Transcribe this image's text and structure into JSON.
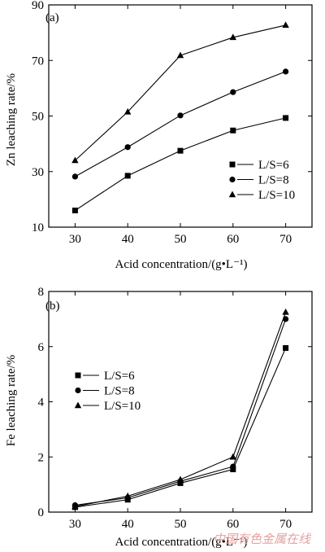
{
  "chart_data": [
    {
      "type": "line",
      "panel_label": "(a)",
      "xlabel": "Acid concentration/(g•L⁻¹)",
      "ylabel": "Zn leaching rate/%",
      "x": [
        30,
        40,
        50,
        60,
        70
      ],
      "xlim": [
        25,
        75
      ],
      "ylim": [
        10,
        90
      ],
      "xticks": [
        30,
        40,
        50,
        60,
        70
      ],
      "yticks": [
        10,
        30,
        50,
        70,
        90
      ],
      "legend_position": "lower-right",
      "series": [
        {
          "name": "L/S=6",
          "marker": "square",
          "values": [
            16.0,
            28.5,
            37.5,
            44.8,
            49.3
          ]
        },
        {
          "name": "L/S=8",
          "marker": "circle",
          "values": [
            28.2,
            38.8,
            50.2,
            58.6,
            66.0
          ]
        },
        {
          "name": "L/S=10",
          "marker": "triangle",
          "values": [
            34.0,
            51.5,
            71.8,
            78.3,
            82.7
          ]
        }
      ]
    },
    {
      "type": "line",
      "panel_label": "(b)",
      "xlabel": "Acid concentration/(g•L⁻¹)",
      "ylabel": "Fe leaching rate/%",
      "x": [
        30,
        40,
        50,
        60,
        70
      ],
      "xlim": [
        25,
        75
      ],
      "ylim": [
        0,
        8
      ],
      "xticks": [
        30,
        40,
        50,
        60,
        70
      ],
      "yticks": [
        0,
        2,
        4,
        6,
        8
      ],
      "legend_position": "center-left",
      "series": [
        {
          "name": "L/S=6",
          "marker": "square",
          "values": [
            0.18,
            0.45,
            1.05,
            1.55,
            5.95
          ]
        },
        {
          "name": "L/S=8",
          "marker": "circle",
          "values": [
            0.25,
            0.52,
            1.12,
            1.65,
            7.0
          ]
        },
        {
          "name": "L/S=10",
          "marker": "triangle",
          "values": [
            0.2,
            0.58,
            1.18,
            2.0,
            7.25
          ]
        }
      ]
    }
  ],
  "watermark": "中国有色金属在线"
}
